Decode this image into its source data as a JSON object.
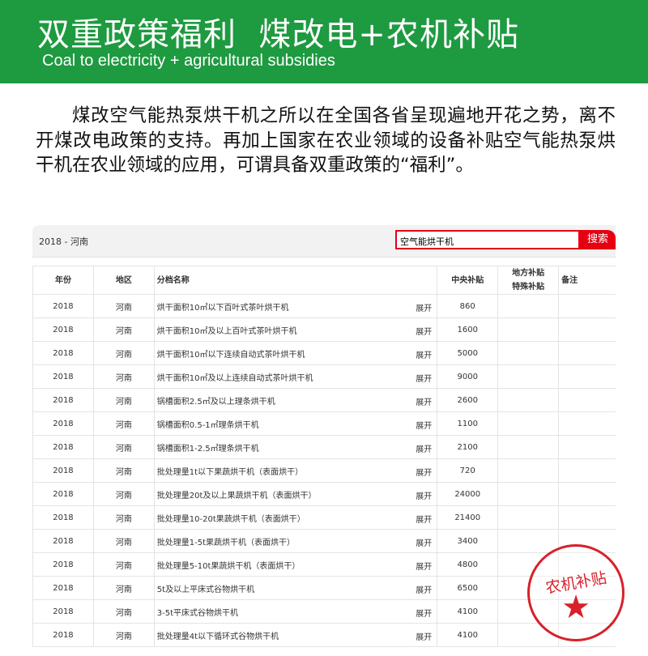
{
  "banner": {
    "title": "双重政策福利  煤改电+农机补贴",
    "subtitle": "Coal to electricity + agricultural subsidies",
    "color": "#1e9a40"
  },
  "paragraph": "煤改空气能热泵烘干机之所以在全国各省呈现遍地开花之势，离不开煤改电政策的支持。再加上国家在农业领域的设备补贴空气能热泵烘干机在农业领域的应用，可谓具备双重政策的“福利”。",
  "search": {
    "breadcrumb": "2018 - 河南",
    "value": "空气能烘干机",
    "button": "搜索"
  },
  "table": {
    "headers": {
      "year": "年份",
      "region": "地区",
      "name": "分档名称",
      "central": "中央补贴",
      "local1": "地方补贴",
      "local2": "特殊补贴",
      "note": "备注"
    },
    "expand": "展开",
    "rows": [
      {
        "year": "2018",
        "region": "河南",
        "name": "烘干面积10㎡以下百叶式茶叶烘干机",
        "central": "860"
      },
      {
        "year": "2018",
        "region": "河南",
        "name": "烘干面积10㎡及以上百叶式茶叶烘干机",
        "central": "1600"
      },
      {
        "year": "2018",
        "region": "河南",
        "name": "烘干面积10㎡以下连续自动式茶叶烘干机",
        "central": "5000"
      },
      {
        "year": "2018",
        "region": "河南",
        "name": "烘干面积10㎡及以上连续自动式茶叶烘干机",
        "central": "9000"
      },
      {
        "year": "2018",
        "region": "河南",
        "name": "锅槽面积2.5㎡及以上理条烘干机",
        "central": "2600"
      },
      {
        "year": "2018",
        "region": "河南",
        "name": "锅槽面积0.5-1㎡理条烘干机",
        "central": "1100"
      },
      {
        "year": "2018",
        "region": "河南",
        "name": "锅槽面积1-2.5㎡理条烘干机",
        "central": "2100"
      },
      {
        "year": "2018",
        "region": "河南",
        "name": "批处理量1t以下果蔬烘干机（表面烘干）",
        "central": "720"
      },
      {
        "year": "2018",
        "region": "河南",
        "name": "批处理量20t及以上果蔬烘干机（表面烘干）",
        "central": "24000"
      },
      {
        "year": "2018",
        "region": "河南",
        "name": "批处理量10-20t果蔬烘干机（表面烘干）",
        "central": "21400"
      },
      {
        "year": "2018",
        "region": "河南",
        "name": "批处理量1-5t果蔬烘干机（表面烘干）",
        "central": "3400"
      },
      {
        "year": "2018",
        "region": "河南",
        "name": "批处理量5-10t果蔬烘干机（表面烘干）",
        "central": "4800"
      },
      {
        "year": "2018",
        "region": "河南",
        "name": "5t及以上平床式谷物烘干机",
        "central": "6500"
      },
      {
        "year": "2018",
        "region": "河南",
        "name": "3-5t平床式谷物烘干机",
        "central": "4100"
      },
      {
        "year": "2018",
        "region": "河南",
        "name": "批处理量4t以下循环式谷物烘干机",
        "central": "4100"
      }
    ]
  },
  "stamp": {
    "text": "农机补贴",
    "color": "#d8202a"
  }
}
